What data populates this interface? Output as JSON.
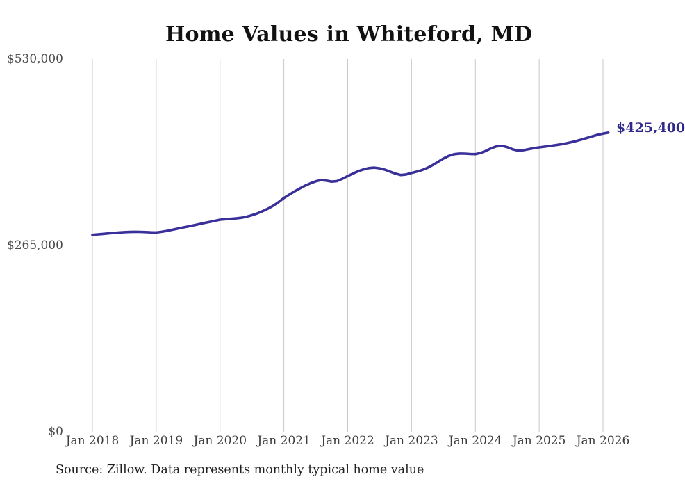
{
  "page": {
    "background": "#ffffff"
  },
  "chart_data": {
    "type": "line",
    "title": "Home Values in Whiteford, MD",
    "x_tick_labels": [
      "Jan 2018",
      "Jan 2019",
      "Jan 2020",
      "Jan 2021",
      "Jan 2022",
      "Jan 2023",
      "Jan 2024",
      "Jan 2025",
      "Jan 2026"
    ],
    "y_ticks": [
      0,
      265000,
      530000
    ],
    "y_tick_labels": [
      "$0",
      "$265,000",
      "$530,000"
    ],
    "ylim": [
      0,
      530000
    ],
    "grid": "vertical",
    "legend": "none",
    "line_color": "#39309a",
    "latest_value": 425400,
    "latest_value_label": "$425,400",
    "series": [
      {
        "name": "Typical home value",
        "start_month": "2018-01",
        "frequency": "monthly",
        "values": [
          280000,
          280700,
          281400,
          282100,
          282800,
          283400,
          283900,
          284200,
          284400,
          284300,
          284000,
          283600,
          283400,
          284400,
          285700,
          287200,
          288800,
          290400,
          292000,
          293600,
          295200,
          296800,
          298400,
          300000,
          301600,
          302300,
          302900,
          303500,
          304400,
          305900,
          308000,
          310600,
          313700,
          317300,
          321500,
          326600,
          332400,
          337200,
          341800,
          346100,
          350000,
          353400,
          356200,
          358000,
          357200,
          355800,
          356600,
          359700,
          363700,
          367300,
          370600,
          373200,
          375000,
          375600,
          374700,
          372700,
          369900,
          367000,
          365200,
          366000,
          368100,
          370000,
          372300,
          375400,
          379400,
          384000,
          388600,
          392300,
          394700,
          395600,
          395500,
          395000,
          394800,
          396500,
          399600,
          403200,
          405900,
          406600,
          404700,
          401800,
          399900,
          400400,
          401900,
          403300,
          404400,
          405400,
          406400,
          407500,
          408700,
          410100,
          411700,
          413600,
          415700,
          417900,
          420100,
          422300,
          424000,
          425400
        ]
      }
    ]
  },
  "source_note": "Source: Zillow. Data represents monthly typical home value"
}
